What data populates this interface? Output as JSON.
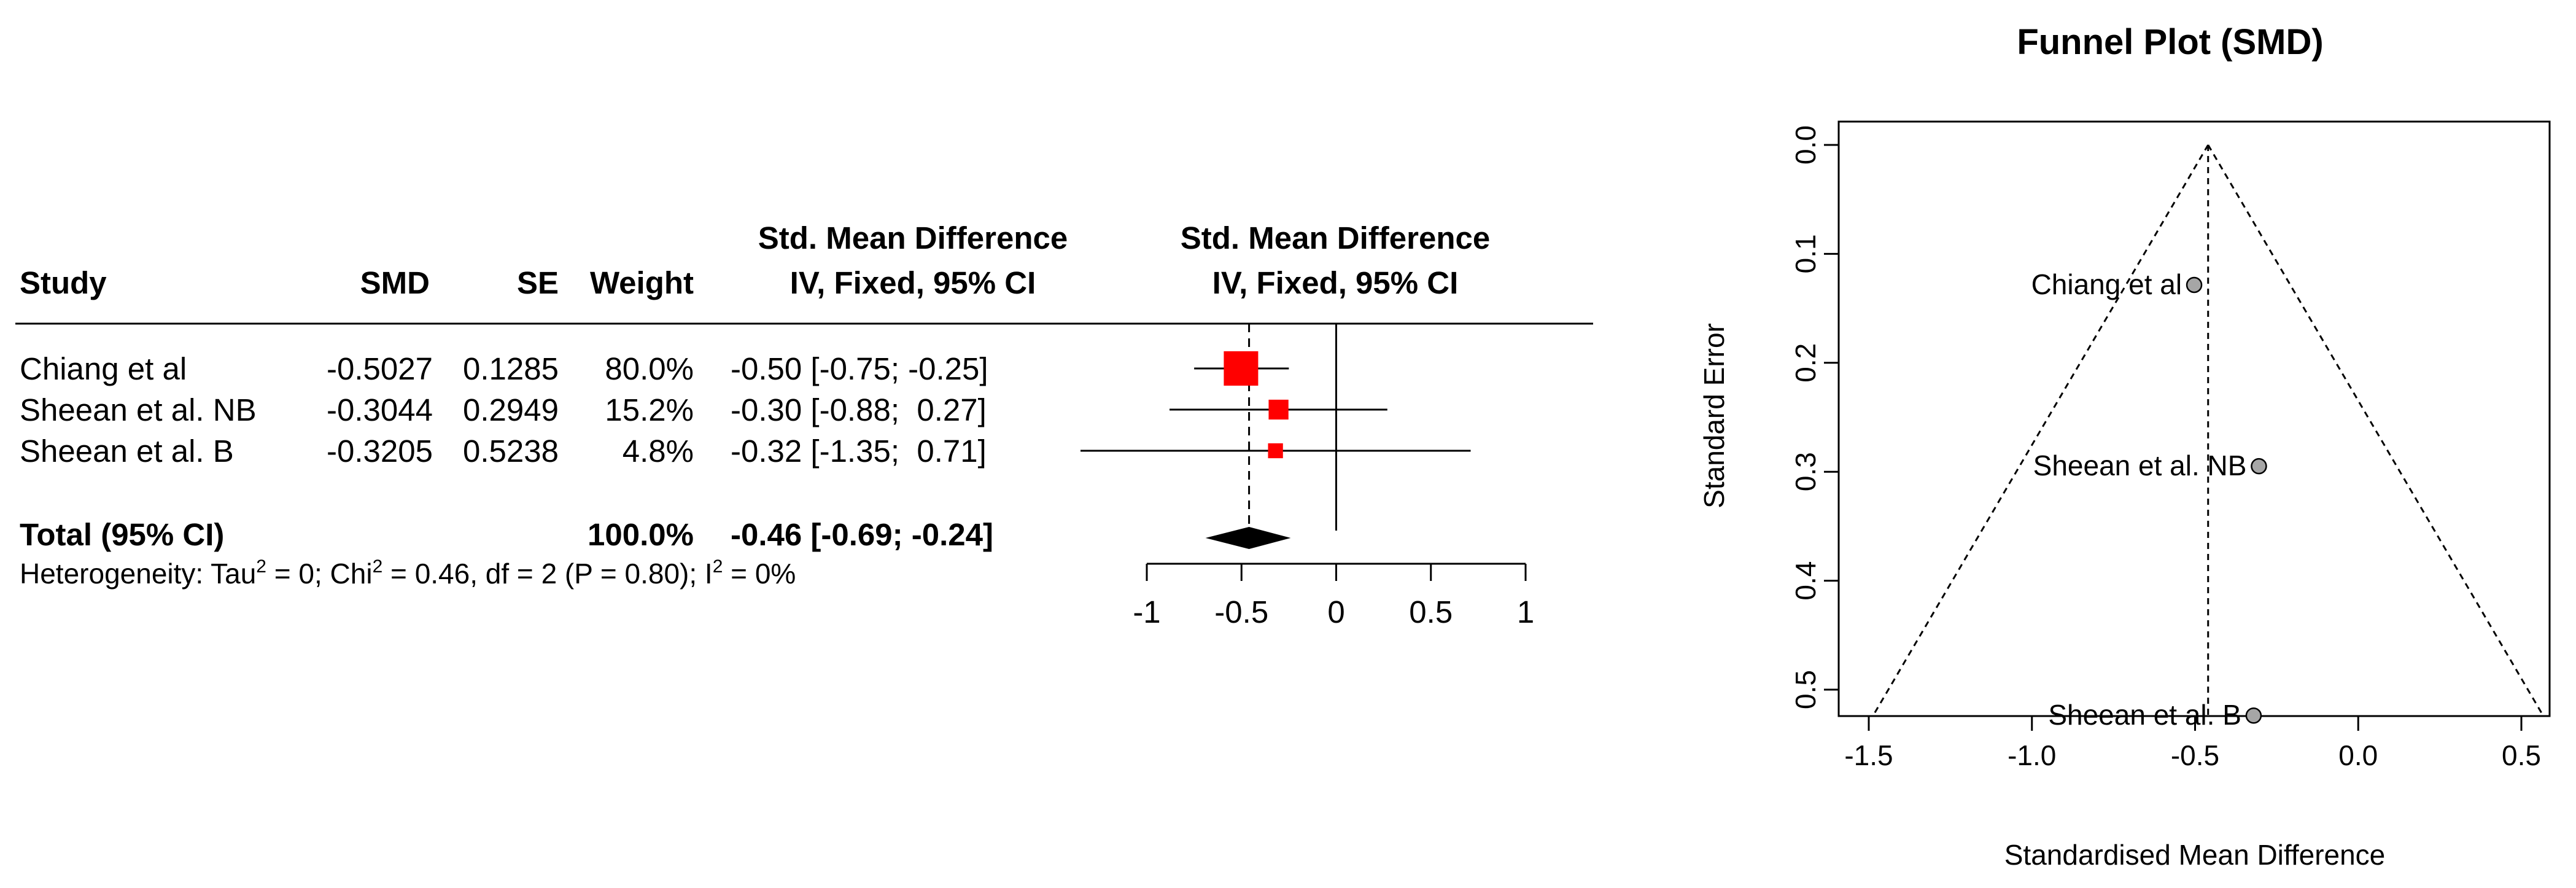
{
  "chart_data": [
    {
      "type": "table",
      "subtype": "forest",
      "columns": {
        "study": "Study",
        "smd": "SMD",
        "se": "SE",
        "weight": "Weight",
        "ci_line1": "Std. Mean Difference",
        "ci_line2": "IV, Fixed, 95% CI",
        "plot_line1": "Std. Mean Difference",
        "plot_line2": "IV, Fixed, 95% CI"
      },
      "studies": [
        {
          "name": "Chiang et al",
          "smd": "-0.5027",
          "se": "0.1285",
          "weight": "80.0%",
          "ci": "-0.50 [-0.75; -0.25]",
          "est": -0.5027,
          "lo": -0.75,
          "hi": -0.25,
          "w": 80.0
        },
        {
          "name": "Sheean et al. NB",
          "smd": "-0.3044",
          "se": "0.2949",
          "weight": "15.2%",
          "ci": "-0.30 [-0.88;  0.27]",
          "est": -0.3044,
          "lo": -0.88,
          "hi": 0.27,
          "w": 15.2
        },
        {
          "name": "Sheean et al. B",
          "smd": "-0.3205",
          "se": "0.5238",
          "weight": "4.8%",
          "ci": "-0.32 [-1.35;  0.71]",
          "est": -0.3205,
          "lo": -1.35,
          "hi": 0.71,
          "w": 4.8
        }
      ],
      "total": {
        "label": "Total (95% CI)",
        "weight": "100.0%",
        "ci": "-0.46 [-0.69; -0.24]",
        "est": -0.46,
        "lo": -0.69,
        "hi": -0.24
      },
      "heterogeneity": {
        "prefix": "Heterogeneity: Tau",
        "sup1": "2",
        "mid1": " = 0; Chi",
        "sup2": "2",
        "mid2": " = 0.46, df = 2 (P = 0.80); I",
        "sup3": "2",
        "end": " = 0%"
      },
      "xaxis": {
        "ticks": [
          -1,
          -0.5,
          0,
          0.5,
          1
        ],
        "tick_labels": [
          "-1",
          "-0.5",
          "0",
          "0.5",
          "1"
        ],
        "xlim": [
          -1,
          1
        ],
        "null_value": 0
      },
      "colors": {
        "study_marker": "#ff0000",
        "summary": "#000000"
      }
    },
    {
      "type": "scatter",
      "subtype": "funnel",
      "title": "Funnel Plot (SMD)",
      "xlabel": "Standardised Mean Difference",
      "ylabel": "Standard Error",
      "xlim": [
        -1.55,
        0.63
      ],
      "ylim": [
        0.5238,
        0.0
      ],
      "x_ticks": [
        -1.5,
        -1.0,
        -0.5,
        0.0,
        0.5
      ],
      "x_tick_labels": [
        "-1.5",
        "-1.0",
        "-0.5",
        "0.0",
        "0.5"
      ],
      "y_ticks": [
        0.0,
        0.1,
        0.2,
        0.3,
        0.4,
        0.5
      ],
      "y_tick_labels": [
        "0.0",
        "0.1",
        "0.2",
        "0.3",
        "0.4",
        "0.5"
      ],
      "pooled": -0.46,
      "se_max": 0.5238,
      "points": [
        {
          "label": "Chiang et al",
          "x": -0.5027,
          "y": 0.1285
        },
        {
          "label": "Sheean et al. NB",
          "x": -0.3044,
          "y": 0.2949
        },
        {
          "label": "Sheean et al. B",
          "x": -0.3205,
          "y": 0.5238
        }
      ],
      "colors": {
        "point": "#a6a6a6"
      }
    }
  ]
}
